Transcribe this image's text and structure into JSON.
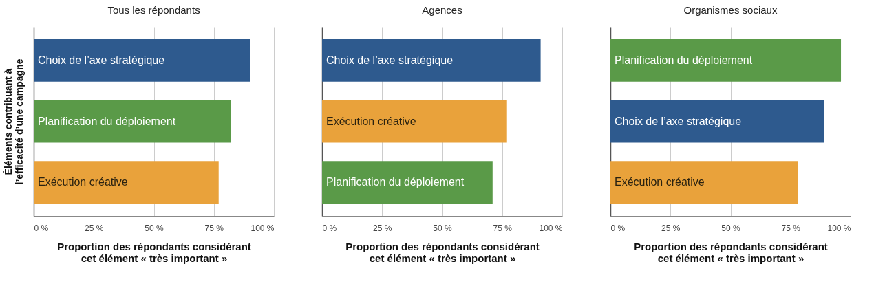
{
  "chart_data": [
    {
      "type": "bar",
      "orientation": "horizontal",
      "title": "Tous les répondants",
      "ylabel": "Éléments contribuant à\nl’efficacité d’une campagne",
      "xlabel": "Proportion des répondants considérant\ncet élément «  très important  »",
      "categories": [
        "Choix de l’axe stratégique",
        "Planification du déploiement",
        "Exécution créative"
      ],
      "values": [
        90,
        82,
        77
      ],
      "colors": [
        "#2e5a8e",
        "#5a9a48",
        "#e9a23b"
      ],
      "xlim": [
        0,
        100
      ],
      "xticks": [
        {
          "value": 0,
          "label": "0 %"
        },
        {
          "value": 25,
          "label": "25 %"
        },
        {
          "value": 50,
          "label": "50 %"
        },
        {
          "value": 75,
          "label": "75 %"
        },
        {
          "value": 100,
          "label": "100 %"
        }
      ],
      "grid": "x"
    },
    {
      "type": "bar",
      "orientation": "horizontal",
      "title": "Agences",
      "xlabel": "Proportion des répondants considérant\ncet élément «  très important  »",
      "categories": [
        "Choix de l’axe stratégique",
        "Exécution créative",
        "Planification du déploiement"
      ],
      "values": [
        91,
        77,
        71
      ],
      "colors": [
        "#2e5a8e",
        "#e9a23b",
        "#5a9a48"
      ],
      "xlim": [
        0,
        100
      ],
      "xticks": [
        {
          "value": 0,
          "label": "0 %"
        },
        {
          "value": 25,
          "label": "25 %"
        },
        {
          "value": 50,
          "label": "50 %"
        },
        {
          "value": 75,
          "label": "75 %"
        },
        {
          "value": 100,
          "label": "100 %"
        }
      ],
      "grid": "x"
    },
    {
      "type": "bar",
      "orientation": "horizontal",
      "title": "Organismes sociaux",
      "xlabel": "Proportion des répondants considérant\ncet élément «  très important  »",
      "categories": [
        "Planification du déploiement",
        "Choix de l’axe stratégique",
        "Exécution créative"
      ],
      "values": [
        96,
        89,
        78
      ],
      "colors": [
        "#5a9a48",
        "#2e5a8e",
        "#e9a23b"
      ],
      "xlim": [
        0,
        100
      ],
      "xticks": [
        {
          "value": 0,
          "label": "0 %"
        },
        {
          "value": 25,
          "label": "25 %"
        },
        {
          "value": 50,
          "label": "50 %"
        },
        {
          "value": 75,
          "label": "75 %"
        },
        {
          "value": 100,
          "label": "100 %"
        }
      ],
      "grid": "x"
    }
  ]
}
